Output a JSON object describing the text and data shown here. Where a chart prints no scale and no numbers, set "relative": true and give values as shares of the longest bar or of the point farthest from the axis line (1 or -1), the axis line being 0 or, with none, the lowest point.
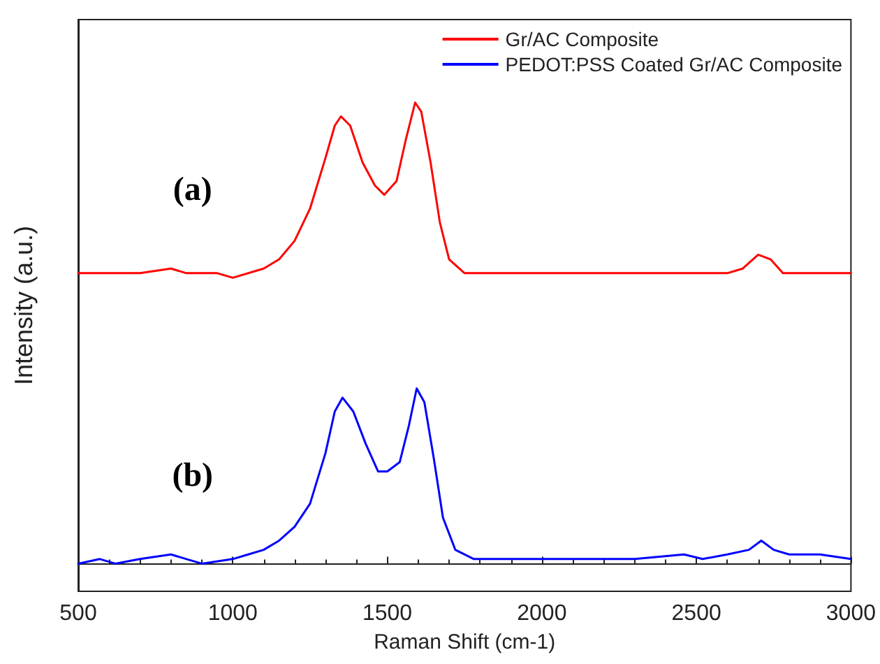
{
  "chart_data": {
    "type": "line",
    "xlabel": "Raman Shift (cm-1)",
    "ylabel": "Intensity (a.u.)",
    "relative": true,
    "xlim": [
      500,
      3000
    ],
    "xticks": [
      500,
      1000,
      1500,
      2000,
      2500,
      3000
    ],
    "grid": false,
    "legend": "top right",
    "marker": "none",
    "line_style": "solid",
    "annotations": [
      "(a)",
      "(b)"
    ],
    "series": [
      {
        "name": "Gr/AC Composite",
        "color": "#ff0000",
        "x": [
          500,
          600,
          700,
          800,
          850,
          950,
          1000,
          1100,
          1150,
          1200,
          1250,
          1300,
          1330,
          1350,
          1380,
          1420,
          1460,
          1490,
          1530,
          1560,
          1590,
          1610,
          1640,
          1670,
          1700,
          1750,
          1900,
          2100,
          2200,
          2300,
          2400,
          2600,
          2650,
          2700,
          2740,
          2780,
          2900,
          3000
        ],
        "values": [
          0.63,
          0.63,
          0.63,
          0.64,
          0.63,
          0.63,
          0.62,
          0.64,
          0.66,
          0.7,
          0.77,
          0.88,
          0.95,
          0.97,
          0.95,
          0.87,
          0.82,
          0.8,
          0.83,
          0.92,
          1,
          0.98,
          0.87,
          0.74,
          0.66,
          0.63,
          0.63,
          0.63,
          0.63,
          0.63,
          0.63,
          0.63,
          0.64,
          0.67,
          0.66,
          0.63,
          0.63,
          0.63
        ]
      },
      {
        "name": "PEDOT:PSS Coated Gr/AC Composite",
        "color": "#0000ff",
        "x": [
          500,
          570,
          620,
          700,
          800,
          850,
          900,
          1000,
          1050,
          1100,
          1150,
          1200,
          1250,
          1300,
          1330,
          1355,
          1390,
          1430,
          1470,
          1500,
          1540,
          1570,
          1595,
          1620,
          1650,
          1680,
          1720,
          1780,
          2000,
          2200,
          2300,
          2460,
          2520,
          2600,
          2670,
          2710,
          2750,
          2800,
          2900,
          3000
        ],
        "values": [
          0,
          0.01,
          0,
          0.01,
          0.02,
          0.01,
          0,
          0.01,
          0.02,
          0.03,
          0.05,
          0.08,
          0.13,
          0.24,
          0.33,
          0.36,
          0.33,
          0.26,
          0.2,
          0.2,
          0.22,
          0.3,
          0.38,
          0.35,
          0.23,
          0.1,
          0.03,
          0.01,
          0.01,
          0.01,
          0.01,
          0.02,
          0.01,
          0.02,
          0.03,
          0.05,
          0.03,
          0.02,
          0.02,
          0.01
        ]
      }
    ]
  }
}
